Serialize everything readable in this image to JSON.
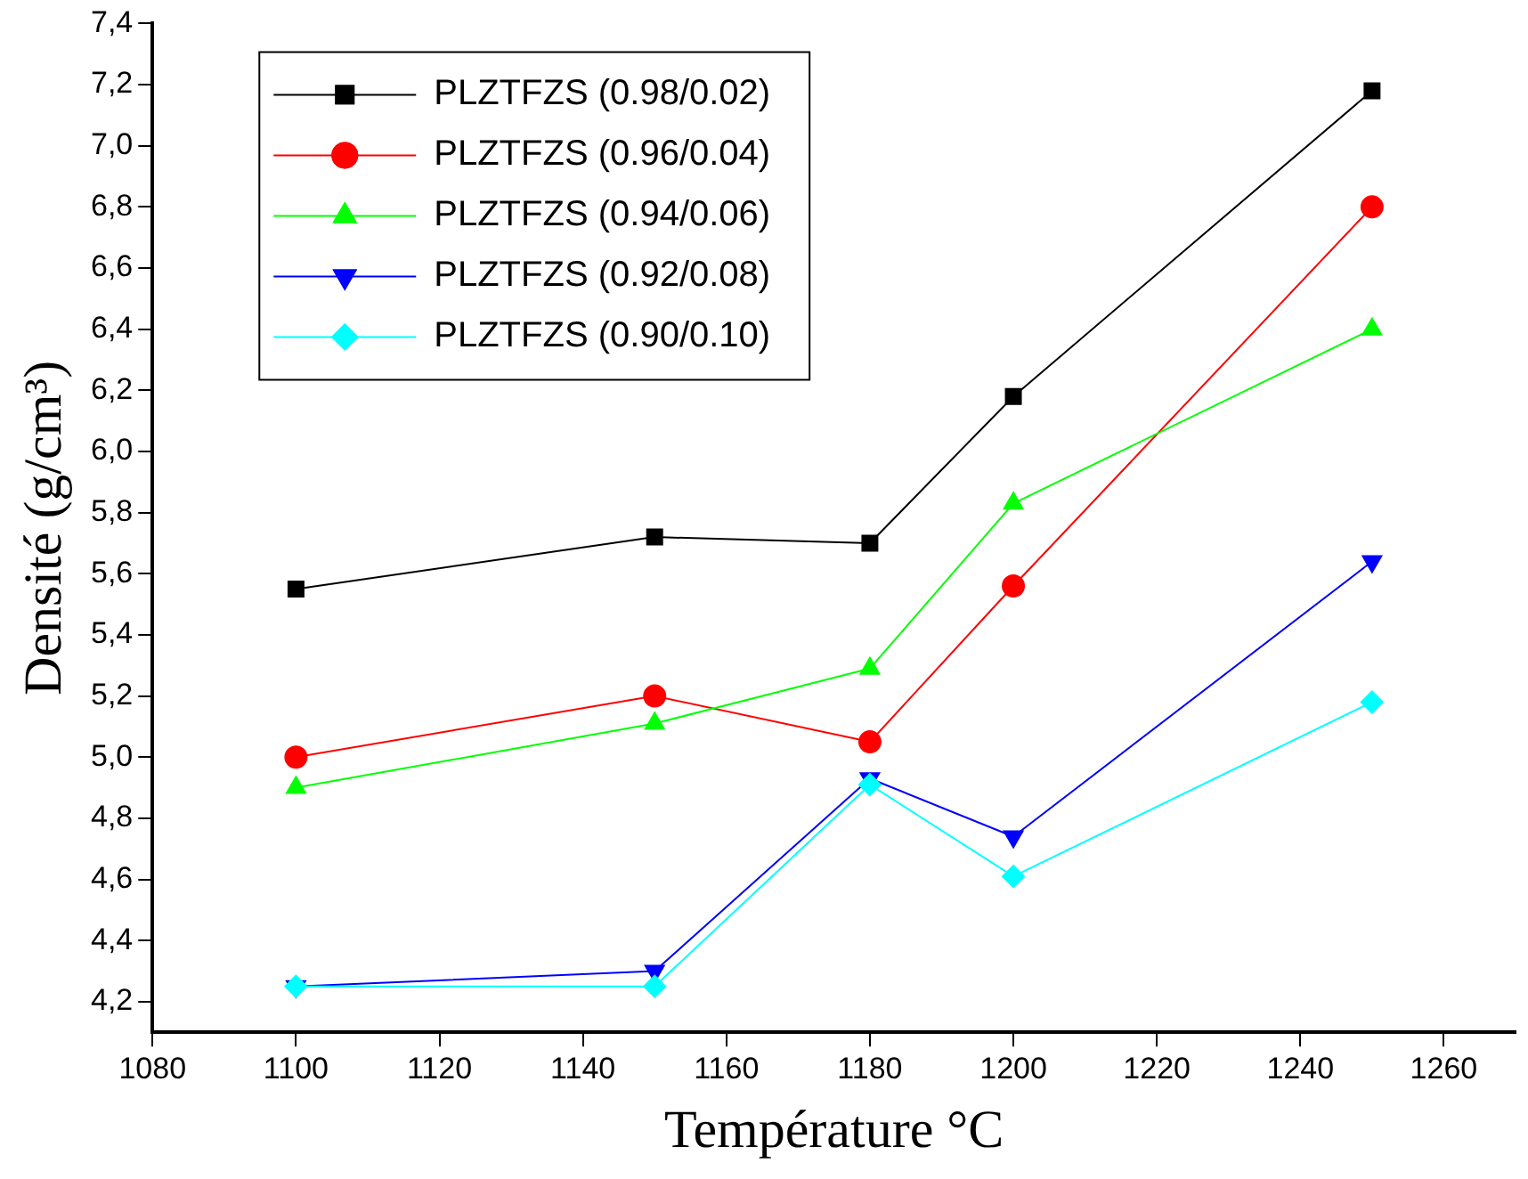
{
  "chart_data": {
    "type": "line",
    "xlabel": "Température °C",
    "ylabel": "Densité (g/cm³)",
    "x": [
      1100,
      1150,
      1180,
      1200,
      1250
    ],
    "series": [
      {
        "name": "PLZTFZS (0.98/0.02)",
        "color": "#000000",
        "marker": "square",
        "values": [
          5.55,
          5.72,
          5.7,
          6.18,
          7.18
        ]
      },
      {
        "name": "PLZTFZS (0.96/0.04)",
        "color": "#ff0000",
        "marker": "circle",
        "values": [
          5.0,
          5.2,
          5.05,
          5.56,
          6.8
        ]
      },
      {
        "name": "PLZTFZS (0.94/0.06)",
        "color": "#00ff00",
        "marker": "triangle",
        "values": [
          4.9,
          5.11,
          5.29,
          5.83,
          6.4
        ]
      },
      {
        "name": "PLZTFZS (0.92/0.08)",
        "color": "#0000ff",
        "marker": "triangle-down",
        "values": [
          4.25,
          4.3,
          4.93,
          4.74,
          5.64
        ]
      },
      {
        "name": "PLZTFZS (0.90/0.10)",
        "color": "#00ffff",
        "marker": "diamond",
        "values": [
          4.25,
          4.25,
          4.91,
          4.61,
          5.18
        ]
      }
    ],
    "xlim": [
      1080,
      1270
    ],
    "xticks": [
      1080,
      1100,
      1120,
      1140,
      1160,
      1180,
      1200,
      1220,
      1240,
      1260
    ],
    "ylim": [
      4.1,
      7.4
    ],
    "yticks": [
      {
        "value": 4.2,
        "label": "4,2"
      },
      {
        "value": 4.4,
        "label": "4,4"
      },
      {
        "value": 4.6,
        "label": "4,6"
      },
      {
        "value": 4.8,
        "label": "4,8"
      },
      {
        "value": 5.0,
        "label": "5,0"
      },
      {
        "value": 5.2,
        "label": "5,2"
      },
      {
        "value": 5.4,
        "label": "5,4"
      },
      {
        "value": 5.6,
        "label": "5,6"
      },
      {
        "value": 5.8,
        "label": "5,8"
      },
      {
        "value": 6.0,
        "label": "6,0"
      },
      {
        "value": 6.2,
        "label": "6,2"
      },
      {
        "value": 6.4,
        "label": "6,4"
      },
      {
        "value": 6.6,
        "label": "6,6"
      },
      {
        "value": 6.8,
        "label": "6,8"
      },
      {
        "value": 7.0,
        "label": "7,0"
      },
      {
        "value": 7.2,
        "label": "7,2"
      },
      {
        "value": 7.4,
        "label": "7,4"
      }
    ],
    "grid": false,
    "legend": "top left",
    "line_style": "solid"
  }
}
